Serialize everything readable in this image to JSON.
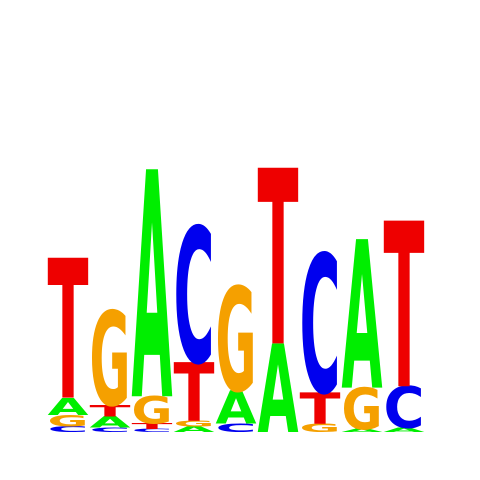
{
  "colors": {
    "A": "#00ee00",
    "C": "#0000ee",
    "G": "#f5a000",
    "T": "#ee0000"
  },
  "positions": [
    [
      {
        "base": "C",
        "bits": 0.04
      },
      {
        "base": "G",
        "bits": 0.08
      },
      {
        "base": "A",
        "bits": 0.12
      },
      {
        "base": "T",
        "bits": 0.98
      }
    ],
    [
      {
        "base": "C",
        "bits": 0.03
      },
      {
        "base": "A",
        "bits": 0.08
      },
      {
        "base": "T",
        "bits": 0.08
      },
      {
        "base": "G",
        "bits": 0.66
      }
    ],
    [
      {
        "base": "C",
        "bits": 0.02
      },
      {
        "base": "T",
        "bits": 0.04
      },
      {
        "base": "G",
        "bits": 0.19
      },
      {
        "base": "A",
        "bits": 1.59
      }
    ],
    [
      {
        "base": "A",
        "bits": 0.04
      },
      {
        "base": "G",
        "bits": 0.04
      },
      {
        "base": "T",
        "bits": 0.41
      },
      {
        "base": "C",
        "bits": 0.95
      }
    ],
    [
      {
        "base": "C",
        "bits": 0.06
      },
      {
        "base": "A",
        "bits": 0.23
      },
      {
        "base": "G",
        "bits": 0.73
      }
    ],
    [
      {
        "base": "A",
        "bits": 0.62
      },
      {
        "base": "T",
        "bits": 1.23
      }
    ],
    [
      {
        "base": "G",
        "bits": 0.06
      },
      {
        "base": "T",
        "bits": 0.22
      },
      {
        "base": "C",
        "bits": 0.97
      }
    ],
    [
      {
        "base": "A",
        "bits": 0.02
      },
      {
        "base": "G",
        "bits": 0.29
      },
      {
        "base": "A",
        "bits": 1.04
      }
    ],
    [
      {
        "base": "A",
        "bits": 0.03
      },
      {
        "base": "C",
        "bits": 0.29
      },
      {
        "base": "T",
        "bits": 1.16
      }
    ]
  ]
}
